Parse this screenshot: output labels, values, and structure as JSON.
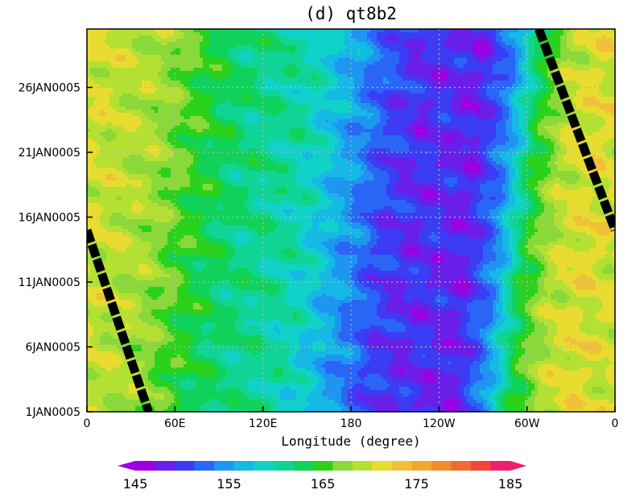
{
  "chart_data": {
    "type": "heatmap",
    "title": "(d) qt8b2",
    "xlabel": "Longitude (degree)",
    "ylabel": "",
    "x_ticks": [
      "0",
      "60E",
      "120E",
      "180",
      "120W",
      "60W",
      "0"
    ],
    "x_range_degrees_east": [
      0,
      360
    ],
    "y_ticks": [
      "1JAN0005",
      "6JAN0005",
      "11JAN0005",
      "16JAN0005",
      "21JAN0005",
      "26JAN0005"
    ],
    "y_range_days": [
      1,
      30.5
    ],
    "grid": true,
    "colorbar": {
      "orientation": "horizontal",
      "min": 145,
      "max": 185,
      "step": 2.5,
      "tick_labels": [
        "145",
        "155",
        "165",
        "175",
        "185"
      ],
      "colors": [
        "#9b00e0",
        "#6a1fe8",
        "#3c3cf5",
        "#2a66f5",
        "#1e96f0",
        "#16b8e6",
        "#10d2c8",
        "#10d496",
        "#10d25a",
        "#2ad21c",
        "#8ad83a",
        "#b4e034",
        "#e8dc30",
        "#f0c038",
        "#f0a832",
        "#ee8c2e",
        "#f06c32",
        "#f0443c",
        "#f01e6e"
      ]
    },
    "field_profile": {
      "longitude_deg": [
        0,
        20,
        40,
        60,
        80,
        100,
        120,
        140,
        160,
        180,
        200,
        220,
        240,
        260,
        280,
        300,
        320,
        340,
        360
      ],
      "values": [
        175,
        174,
        173,
        170,
        167,
        165,
        164,
        163,
        160,
        156,
        152,
        150,
        150,
        149,
        155,
        167,
        174,
        176,
        175
      ]
    },
    "trend_lines": [
      {
        "from": {
          "longitude_deg": 0,
          "day": 15
        },
        "to": {
          "longitude_deg": 42,
          "day": 1
        }
      },
      {
        "from": {
          "longitude_deg": 308,
          "day": 30.5
        },
        "to": {
          "longitude_deg": 360,
          "day": 15
        }
      }
    ]
  }
}
